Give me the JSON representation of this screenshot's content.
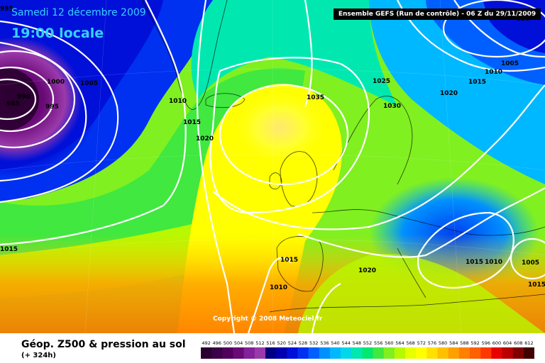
{
  "header": {
    "date": "Samedi 12 décembre 2009",
    "local_time": "19:00 locale",
    "run_info": "Ensemble GEFS (Run de contrôle) - 06 Z du 29/11/2009"
  },
  "copyright": "Copyright © 2008 Meteociel.fr",
  "legend": {
    "title": "Géop. Z500 & pression au sol",
    "subtitle": "(+ 324h)",
    "levels": [
      "492",
      "496",
      "500",
      "504",
      "508",
      "512",
      "516",
      "520",
      "524",
      "528",
      "532",
      "536",
      "540",
      "544",
      "548",
      "552",
      "556",
      "560",
      "564",
      "568",
      "572",
      "576",
      "580",
      "584",
      "588",
      "592",
      "596",
      "600",
      "604",
      "608",
      "612"
    ],
    "colors": [
      "#2a0030",
      "#3c0048",
      "#52005e",
      "#6a0a78",
      "#84209a",
      "#9a3aaa",
      "#000080",
      "#0000b0",
      "#0010d8",
      "#0030f0",
      "#0060ff",
      "#0090ff",
      "#00b8ff",
      "#00d8e8",
      "#00e8b0",
      "#00e870",
      "#40e840",
      "#80f020",
      "#b8f800",
      "#e8ff00",
      "#ffff00",
      "#ffe000",
      "#ffc000",
      "#ffa000",
      "#ff8000",
      "#ff6000",
      "#ff3800",
      "#e80000",
      "#b80000",
      "#800000",
      "#400000"
    ]
  },
  "isobars": [
    {
      "label": "1000",
      "value": 1000
    },
    {
      "label": "1005",
      "value": 1005
    },
    {
      "label": "990",
      "value": 990
    },
    {
      "label": "985",
      "value": 985
    },
    {
      "label": "995",
      "value": 995
    },
    {
      "label": "1010",
      "value": 1010
    },
    {
      "label": "1015",
      "value": 1015
    },
    {
      "label": "1020",
      "value": 1020
    },
    {
      "label": "1035",
      "value": 1035
    },
    {
      "label": "1025",
      "value": 1025
    },
    {
      "label": "1030",
      "value": 1030
    },
    {
      "label": "1020",
      "value": 1020
    },
    {
      "label": "1015",
      "value": 1015
    },
    {
      "label": "1010",
      "value": 1010
    },
    {
      "label": "1005",
      "value": 1005
    },
    {
      "label": "1015",
      "value": 1015
    },
    {
      "label": "1015",
      "value": 1015
    },
    {
      "label": "1010",
      "value": 1010
    },
    {
      "label": "1020",
      "value": 1020
    },
    {
      "label": "1015",
      "value": 1015
    },
    {
      "label": "1010",
      "value": 1010
    },
    {
      "label": "1005",
      "value": 1005
    },
    {
      "label": "1015",
      "value": 1015
    },
    {
      "label": "995",
      "value": 995
    },
    {
      "label": "990",
      "value": 990
    }
  ]
}
